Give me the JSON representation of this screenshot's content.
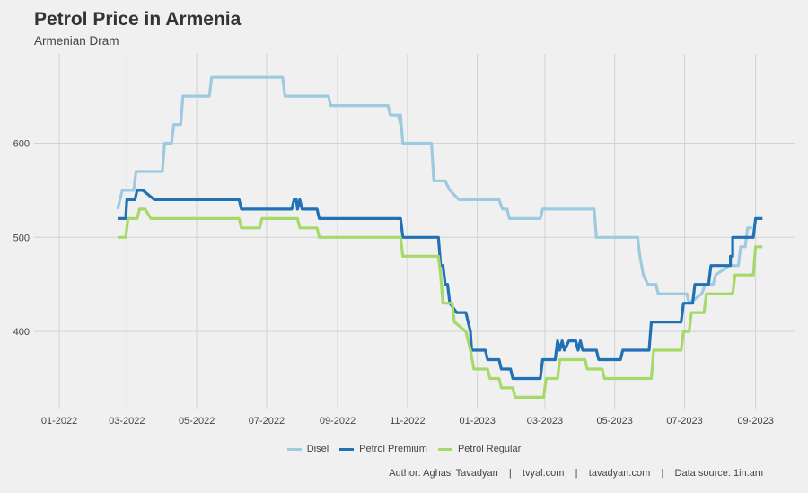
{
  "chart_data": {
    "type": "line",
    "title": "Petrol Price in Armenia",
    "subtitle": "Armenian Dram",
    "caption": "Author: Aghasi Tavadyan    |    tvyal.com    |    tavadyan.com    |    Data source: 1in.am",
    "x_range": [
      "2021-12-10",
      "2023-10-05"
    ],
    "ylim": [
      318,
      695
    ],
    "y_ticks": [
      400,
      500,
      600
    ],
    "x_ticks": [
      {
        "date": "2022-01-01",
        "label": "01-2022"
      },
      {
        "date": "2022-03-01",
        "label": "03-2022"
      },
      {
        "date": "2022-05-01",
        "label": "05-2022"
      },
      {
        "date": "2022-07-01",
        "label": "07-2022"
      },
      {
        "date": "2022-09-01",
        "label": "09-2022"
      },
      {
        "date": "2022-11-01",
        "label": "11-2022"
      },
      {
        "date": "2023-01-01",
        "label": "01-2023"
      },
      {
        "date": "2023-03-01",
        "label": "03-2023"
      },
      {
        "date": "2023-05-01",
        "label": "05-2023"
      },
      {
        "date": "2023-07-01",
        "label": "07-2023"
      },
      {
        "date": "2023-09-01",
        "label": "09-2023"
      }
    ],
    "grid": true,
    "legend_position": "bottom",
    "series": [
      {
        "name": "Disel",
        "color": "#9ecae1",
        "points": [
          [
            "2022-02-21",
            530
          ],
          [
            "2022-02-25",
            550
          ],
          [
            "2022-03-07",
            550
          ],
          [
            "2022-03-09",
            570
          ],
          [
            "2022-04-01",
            570
          ],
          [
            "2022-04-03",
            600
          ],
          [
            "2022-04-09",
            600
          ],
          [
            "2022-04-11",
            620
          ],
          [
            "2022-04-17",
            620
          ],
          [
            "2022-04-19",
            650
          ],
          [
            "2022-05-12",
            650
          ],
          [
            "2022-05-14",
            670
          ],
          [
            "2022-07-15",
            670
          ],
          [
            "2022-07-17",
            650
          ],
          [
            "2022-08-24",
            650
          ],
          [
            "2022-08-26",
            640
          ],
          [
            "2022-10-15",
            640
          ],
          [
            "2022-10-17",
            630
          ],
          [
            "2022-10-24",
            630
          ],
          [
            "2022-10-26",
            620
          ],
          [
            "2022-10-26",
            630
          ],
          [
            "2022-10-28",
            600
          ],
          [
            "2022-11-22",
            600
          ],
          [
            "2022-11-24",
            560
          ],
          [
            "2022-12-04",
            560
          ],
          [
            "2022-12-08",
            550
          ],
          [
            "2022-12-16",
            540
          ],
          [
            "2023-01-20",
            540
          ],
          [
            "2023-01-23",
            530
          ],
          [
            "2023-01-27",
            530
          ],
          [
            "2023-01-29",
            520
          ],
          [
            "2023-02-25",
            520
          ],
          [
            "2023-02-27",
            530
          ],
          [
            "2023-04-13",
            530
          ],
          [
            "2023-04-15",
            500
          ],
          [
            "2023-05-21",
            500
          ],
          [
            "2023-05-23",
            480
          ],
          [
            "2023-05-26",
            460
          ],
          [
            "2023-05-30",
            450
          ],
          [
            "2023-06-06",
            450
          ],
          [
            "2023-06-08",
            440
          ],
          [
            "2023-07-03",
            440
          ],
          [
            "2023-07-05",
            430
          ],
          [
            "2023-07-16",
            440
          ],
          [
            "2023-07-19",
            450
          ],
          [
            "2023-07-26",
            450
          ],
          [
            "2023-07-28",
            460
          ],
          [
            "2023-08-09",
            470
          ],
          [
            "2023-08-17",
            470
          ],
          [
            "2023-08-19",
            490
          ],
          [
            "2023-08-23",
            490
          ],
          [
            "2023-08-25",
            510
          ],
          [
            "2023-08-29",
            510
          ]
        ]
      },
      {
        "name": "Petrol Premium",
        "color": "#2171b5",
        "points": [
          [
            "2022-02-21",
            520
          ],
          [
            "2022-02-28",
            520
          ],
          [
            "2022-03-01",
            540
          ],
          [
            "2022-03-08",
            540
          ],
          [
            "2022-03-10",
            550
          ],
          [
            "2022-03-15",
            550
          ],
          [
            "2022-03-20",
            545
          ],
          [
            "2022-03-25",
            540
          ],
          [
            "2022-06-07",
            540
          ],
          [
            "2022-06-09",
            530
          ],
          [
            "2022-07-23",
            530
          ],
          [
            "2022-07-25",
            540
          ],
          [
            "2022-07-27",
            540
          ],
          [
            "2022-07-28",
            530
          ],
          [
            "2022-07-30",
            540
          ],
          [
            "2022-08-01",
            530
          ],
          [
            "2022-08-14",
            530
          ],
          [
            "2022-08-16",
            520
          ],
          [
            "2022-10-26",
            520
          ],
          [
            "2022-10-28",
            500
          ],
          [
            "2022-11-28",
            500
          ],
          [
            "2022-11-30",
            470
          ],
          [
            "2022-12-02",
            470
          ],
          [
            "2022-12-04",
            450
          ],
          [
            "2022-12-06",
            450
          ],
          [
            "2022-12-08",
            430
          ],
          [
            "2022-12-14",
            420
          ],
          [
            "2022-12-22",
            420
          ],
          [
            "2022-12-26",
            400
          ],
          [
            "2022-12-27",
            380
          ],
          [
            "2023-01-08",
            380
          ],
          [
            "2023-01-10",
            370
          ],
          [
            "2023-01-20",
            370
          ],
          [
            "2023-01-22",
            360
          ],
          [
            "2023-01-30",
            360
          ],
          [
            "2023-02-01",
            350
          ],
          [
            "2023-02-25",
            350
          ],
          [
            "2023-02-27",
            370
          ],
          [
            "2023-03-10",
            370
          ],
          [
            "2023-03-12",
            390
          ],
          [
            "2023-03-14",
            380
          ],
          [
            "2023-03-16",
            390
          ],
          [
            "2023-03-18",
            380
          ],
          [
            "2023-03-22",
            390
          ],
          [
            "2023-03-28",
            390
          ],
          [
            "2023-03-30",
            380
          ],
          [
            "2023-04-01",
            390
          ],
          [
            "2023-04-03",
            380
          ],
          [
            "2023-04-15",
            380
          ],
          [
            "2023-04-17",
            370
          ],
          [
            "2023-05-06",
            370
          ],
          [
            "2023-05-08",
            380
          ],
          [
            "2023-05-31",
            380
          ],
          [
            "2023-06-02",
            410
          ],
          [
            "2023-06-28",
            410
          ],
          [
            "2023-06-30",
            430
          ],
          [
            "2023-07-08",
            430
          ],
          [
            "2023-07-10",
            450
          ],
          [
            "2023-07-22",
            450
          ],
          [
            "2023-07-24",
            470
          ],
          [
            "2023-08-10",
            470
          ],
          [
            "2023-08-10",
            480
          ],
          [
            "2023-08-12",
            480
          ],
          [
            "2023-08-12",
            500
          ],
          [
            "2023-08-30",
            500
          ],
          [
            "2023-09-01",
            520
          ],
          [
            "2023-09-07",
            520
          ]
        ]
      },
      {
        "name": "Petrol Regular",
        "color": "#a6d96a",
        "points": [
          [
            "2022-02-21",
            500
          ],
          [
            "2022-02-28",
            500
          ],
          [
            "2022-03-02",
            520
          ],
          [
            "2022-03-10",
            520
          ],
          [
            "2022-03-12",
            530
          ],
          [
            "2022-03-17",
            530
          ],
          [
            "2022-03-22",
            520
          ],
          [
            "2022-06-07",
            520
          ],
          [
            "2022-06-09",
            510
          ],
          [
            "2022-06-25",
            510
          ],
          [
            "2022-06-27",
            520
          ],
          [
            "2022-07-28",
            520
          ],
          [
            "2022-07-30",
            510
          ],
          [
            "2022-08-14",
            510
          ],
          [
            "2022-08-16",
            500
          ],
          [
            "2022-10-26",
            500
          ],
          [
            "2022-10-28",
            480
          ],
          [
            "2022-11-28",
            480
          ],
          [
            "2022-11-30",
            460
          ],
          [
            "2022-12-02",
            430
          ],
          [
            "2022-12-10",
            430
          ],
          [
            "2022-12-12",
            410
          ],
          [
            "2022-12-22",
            400
          ],
          [
            "2022-12-26",
            380
          ],
          [
            "2022-12-29",
            360
          ],
          [
            "2023-01-10",
            360
          ],
          [
            "2023-01-12",
            350
          ],
          [
            "2023-01-20",
            350
          ],
          [
            "2023-01-22",
            340
          ],
          [
            "2023-02-01",
            340
          ],
          [
            "2023-02-03",
            330
          ],
          [
            "2023-02-28",
            330
          ],
          [
            "2023-03-02",
            350
          ],
          [
            "2023-03-12",
            350
          ],
          [
            "2023-03-14",
            370
          ],
          [
            "2023-04-05",
            370
          ],
          [
            "2023-04-07",
            360
          ],
          [
            "2023-04-20",
            360
          ],
          [
            "2023-04-22",
            350
          ],
          [
            "2023-06-02",
            350
          ],
          [
            "2023-06-04",
            380
          ],
          [
            "2023-06-28",
            380
          ],
          [
            "2023-06-30",
            400
          ],
          [
            "2023-07-05",
            400
          ],
          [
            "2023-07-07",
            420
          ],
          [
            "2023-07-18",
            420
          ],
          [
            "2023-07-20",
            440
          ],
          [
            "2023-08-12",
            440
          ],
          [
            "2023-08-14",
            460
          ],
          [
            "2023-08-30",
            460
          ],
          [
            "2023-09-01",
            490
          ],
          [
            "2023-09-07",
            490
          ]
        ]
      }
    ]
  }
}
